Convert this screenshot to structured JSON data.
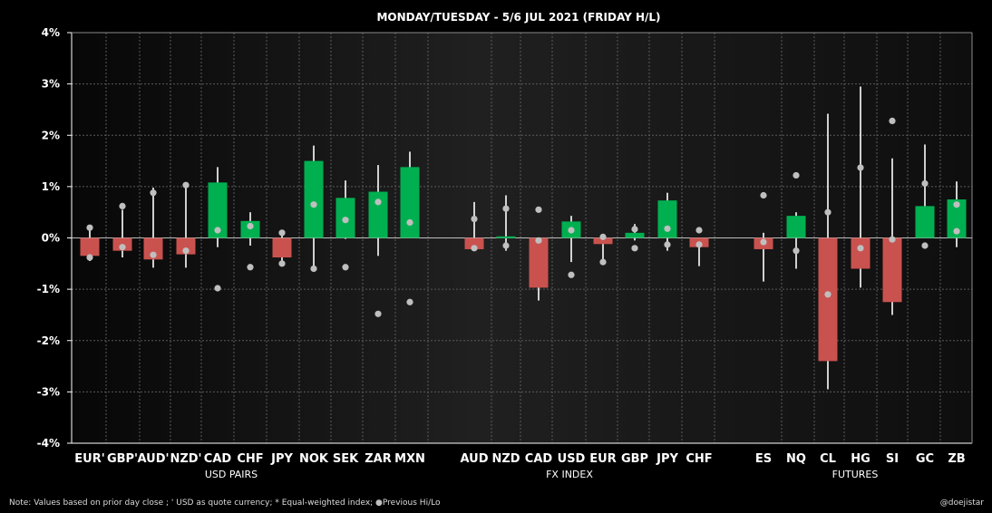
{
  "chart_data": {
    "type": "bar",
    "title": "MONDAY/TUESDAY  -  5/6 JUL 2021  (FRIDAY H/L)",
    "ylim": [
      -4,
      4
    ],
    "yticks": [
      -4,
      -3,
      -2,
      -1,
      0,
      1,
      2,
      3,
      4
    ],
    "ytick_labels": [
      "-4%",
      "-3%",
      "-2%",
      "-1%",
      "0%",
      "1%",
      "2%",
      "3%",
      "4%"
    ],
    "grid": true,
    "colors": {
      "positive": "#00b050",
      "negative": "#c9524f",
      "whisker": "#ffffff",
      "prev_marker": "#bfbfbf",
      "grid": "#5a5a5a",
      "background": "#000000"
    },
    "groups": [
      {
        "name": "USD PAIRS",
        "items": [
          {
            "label": "EUR'",
            "value": -0.35,
            "low": -0.45,
            "high": 0.15,
            "prev_high": 0.2,
            "prev_low": -0.38
          },
          {
            "label": "GBP'",
            "value": -0.25,
            "low": -0.38,
            "high": 0.55,
            "prev_high": 0.62,
            "prev_low": -0.18
          },
          {
            "label": "AUD'",
            "value": -0.42,
            "low": -0.58,
            "high": 0.98,
            "prev_high": 0.88,
            "prev_low": -0.33
          },
          {
            "label": "NZD'",
            "value": -0.32,
            "low": -0.58,
            "high": 1.05,
            "prev_high": 1.03,
            "prev_low": -0.25
          },
          {
            "label": "CAD",
            "value": 1.08,
            "low": -0.18,
            "high": 1.38,
            "prev_high": 0.15,
            "prev_low": -0.98
          },
          {
            "label": "CHF",
            "value": 0.33,
            "low": -0.15,
            "high": 0.5,
            "prev_high": 0.23,
            "prev_low": -0.57
          },
          {
            "label": "JPY",
            "value": -0.38,
            "low": -0.45,
            "high": 0.12,
            "prev_high": 0.1,
            "prev_low": -0.5
          },
          {
            "label": "NOK",
            "value": 1.5,
            "low": -0.6,
            "high": 1.8,
            "prev_high": 0.65,
            "prev_low": -0.6
          },
          {
            "label": "SEK",
            "value": 0.78,
            "low": -0.02,
            "high": 1.12,
            "prev_high": 0.35,
            "prev_low": -0.57
          },
          {
            "label": "ZAR",
            "value": 0.9,
            "low": -0.35,
            "high": 1.42,
            "prev_high": 0.7,
            "prev_low": -1.48
          },
          {
            "label": "MXN",
            "value": 1.38,
            "low": 0.0,
            "high": 1.68,
            "prev_high": 0.3,
            "prev_low": -1.25
          }
        ]
      },
      {
        "name": "FX INDEX",
        "items": [
          {
            "label": "AUD",
            "value": -0.22,
            "low": -0.25,
            "high": 0.7,
            "prev_high": 0.37,
            "prev_low": -0.2
          },
          {
            "label": "NZD",
            "value": 0.03,
            "low": -0.25,
            "high": 0.83,
            "prev_high": 0.57,
            "prev_low": -0.15
          },
          {
            "label": "CAD",
            "value": -0.97,
            "low": -1.22,
            "high": 0.0,
            "prev_high": 0.55,
            "prev_low": -0.05
          },
          {
            "label": "USD",
            "value": 0.32,
            "low": -0.47,
            "high": 0.43,
            "prev_high": 0.15,
            "prev_low": -0.72
          },
          {
            "label": "EUR",
            "value": -0.12,
            "low": -0.45,
            "high": 0.05,
            "prev_high": 0.02,
            "prev_low": -0.47
          },
          {
            "label": "GBP",
            "value": 0.1,
            "low": -0.05,
            "high": 0.27,
            "prev_high": 0.17,
            "prev_low": -0.2
          },
          {
            "label": "JPY",
            "value": 0.73,
            "low": -0.25,
            "high": 0.88,
            "prev_high": 0.18,
            "prev_low": -0.13
          },
          {
            "label": "CHF",
            "value": -0.18,
            "low": -0.55,
            "high": 0.0,
            "prev_high": 0.15,
            "prev_low": -0.13
          }
        ]
      },
      {
        "name": "FUTURES",
        "items": [
          {
            "label": "ES",
            "value": -0.22,
            "low": -0.85,
            "high": 0.1,
            "prev_high": 0.83,
            "prev_low": -0.08
          },
          {
            "label": "NQ",
            "value": 0.43,
            "low": -0.6,
            "high": 0.5,
            "prev_high": 1.22,
            "prev_low": -0.25
          },
          {
            "label": "CL",
            "value": -2.4,
            "low": -2.95,
            "high": 2.42,
            "prev_high": 0.5,
            "prev_low": -1.1
          },
          {
            "label": "HG",
            "value": -0.6,
            "low": -0.97,
            "high": 2.95,
            "prev_high": 1.37,
            "prev_low": -0.2
          },
          {
            "label": "SI",
            "value": -1.25,
            "low": -1.5,
            "high": 1.55,
            "prev_high": 2.28,
            "prev_low": -0.03
          },
          {
            "label": "GC",
            "value": 0.62,
            "low": 0.0,
            "high": 1.82,
            "prev_high": 1.06,
            "prev_low": -0.15
          },
          {
            "label": "ZB",
            "value": 0.75,
            "low": -0.18,
            "high": 1.1,
            "prev_high": 0.65,
            "prev_low": 0.13
          }
        ]
      }
    ]
  },
  "footnote": {
    "note": "Note:  Values based on prior day close ;  ' USD as quote currency;  * Equal-weighted index;  ",
    "marker_glyph": "●",
    "marker_text": "Previous Hi/Lo",
    "credit": "@doejistar"
  }
}
